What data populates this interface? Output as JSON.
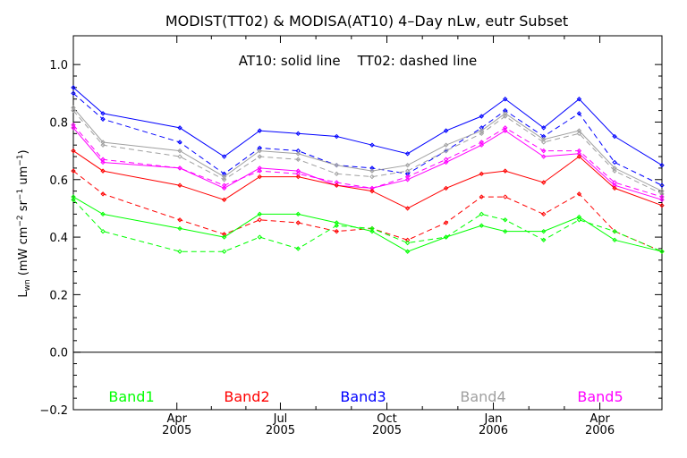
{
  "chart_data": {
    "type": "line",
    "title": "MODIST(TT02) & MODISA(AT10) 4–Day nLw, eutr Subset",
    "ylabel": "L_wn (mW cm^-2 sr^-1 um^-1)",
    "ylabel_parts": {
      "sym": "L",
      "sub": "wn",
      "p1": " (mW cm",
      "e1": "−2",
      "p2": " sr",
      "e2": "−1",
      "p3": " um",
      "e3": "−1",
      "p4": ")"
    },
    "annotation": "AT10: solid line    TT02: dashed line",
    "xlim": [
      0,
      19.9
    ],
    "ylim": [
      -0.2,
      1.1
    ],
    "y_ticks": [
      -0.2,
      0.0,
      0.2,
      0.4,
      0.6,
      0.8,
      1.0
    ],
    "y_tick_labels": [
      "−0.2",
      "0.0",
      "0.2",
      "0.4",
      "0.6",
      "0.8",
      "1.0"
    ],
    "x_ticks": [
      {
        "pos": 3.5,
        "month": "Apr",
        "year": "2005"
      },
      {
        "pos": 7.0,
        "month": "Jul",
        "year": "2005"
      },
      {
        "pos": 10.6,
        "month": "Oct",
        "year": "2005"
      },
      {
        "pos": 14.2,
        "month": "Jan",
        "year": "2006"
      },
      {
        "pos": 17.8,
        "month": "Apr",
        "year": "2006"
      }
    ],
    "zero_line": 0.0,
    "x": [
      0.0,
      1.0,
      3.6,
      5.1,
      6.3,
      7.6,
      8.9,
      10.1,
      11.3,
      12.6,
      13.8,
      14.6,
      15.9,
      17.1,
      18.3,
      19.9
    ],
    "series": [
      {
        "name": "Band3",
        "color": "#0000ff",
        "style": "solid",
        "values": [
          0.92,
          0.83,
          0.78,
          0.68,
          0.77,
          0.76,
          0.75,
          0.72,
          0.69,
          0.77,
          0.82,
          0.88,
          0.78,
          0.88,
          0.75,
          0.65
        ]
      },
      {
        "name": "Band3",
        "color": "#0000ff",
        "style": "dashed",
        "values": [
          0.9,
          0.81,
          0.73,
          0.62,
          0.71,
          0.7,
          0.65,
          0.64,
          0.62,
          0.7,
          0.78,
          0.84,
          0.75,
          0.83,
          0.66,
          0.58
        ]
      },
      {
        "name": "Band4",
        "color": "#a0a0a0",
        "style": "solid",
        "values": [
          0.85,
          0.73,
          0.7,
          0.61,
          0.7,
          0.69,
          0.65,
          0.63,
          0.65,
          0.72,
          0.77,
          0.83,
          0.74,
          0.77,
          0.64,
          0.56
        ]
      },
      {
        "name": "Band4",
        "color": "#a0a0a0",
        "style": "dashed",
        "values": [
          0.84,
          0.72,
          0.68,
          0.6,
          0.68,
          0.67,
          0.62,
          0.61,
          0.63,
          0.7,
          0.76,
          0.82,
          0.73,
          0.76,
          0.63,
          0.55
        ]
      },
      {
        "name": "Band5",
        "color": "#ff00ff",
        "style": "solid",
        "values": [
          0.78,
          0.66,
          0.64,
          0.57,
          0.64,
          0.63,
          0.58,
          0.57,
          0.6,
          0.66,
          0.72,
          0.77,
          0.68,
          0.69,
          0.58,
          0.53
        ]
      },
      {
        "name": "Band5",
        "color": "#ff00ff",
        "style": "dashed",
        "values": [
          0.79,
          0.67,
          0.64,
          0.58,
          0.63,
          0.62,
          0.59,
          0.57,
          0.61,
          0.67,
          0.73,
          0.78,
          0.7,
          0.7,
          0.59,
          0.54
        ]
      },
      {
        "name": "Band2",
        "color": "#ff0000",
        "style": "solid",
        "values": [
          0.7,
          0.63,
          0.58,
          0.53,
          0.61,
          0.61,
          0.58,
          0.56,
          0.5,
          0.57,
          0.62,
          0.63,
          0.59,
          0.68,
          0.57,
          0.51
        ]
      },
      {
        "name": "Band2",
        "color": "#ff0000",
        "style": "dashed",
        "values": [
          0.63,
          0.55,
          0.46,
          0.41,
          0.46,
          0.45,
          0.42,
          0.43,
          0.39,
          0.45,
          0.54,
          0.54,
          0.48,
          0.55,
          0.42,
          0.35
        ]
      },
      {
        "name": "Band1",
        "color": "#00ff00",
        "style": "solid",
        "values": [
          0.54,
          0.48,
          0.43,
          0.4,
          0.48,
          0.48,
          0.45,
          0.42,
          0.35,
          0.4,
          0.44,
          0.42,
          0.42,
          0.47,
          0.39,
          0.35
        ]
      },
      {
        "name": "Band1",
        "color": "#00ff00",
        "style": "dashed",
        "values": [
          0.53,
          0.42,
          0.35,
          0.35,
          0.4,
          0.36,
          0.44,
          0.43,
          0.38,
          0.4,
          0.48,
          0.46,
          0.39,
          0.46,
          0.42,
          0.35
        ]
      }
    ],
    "legend": [
      {
        "label": "Band1",
        "color": "#00ff00"
      },
      {
        "label": "Band2",
        "color": "#ff0000"
      },
      {
        "label": "Band3",
        "color": "#0000ff"
      },
      {
        "label": "Band4",
        "color": "#a0a0a0"
      },
      {
        "label": "Band5",
        "color": "#ff00ff"
      }
    ],
    "legend_placement": "bottom inside plot, horizontal",
    "grid": false
  }
}
